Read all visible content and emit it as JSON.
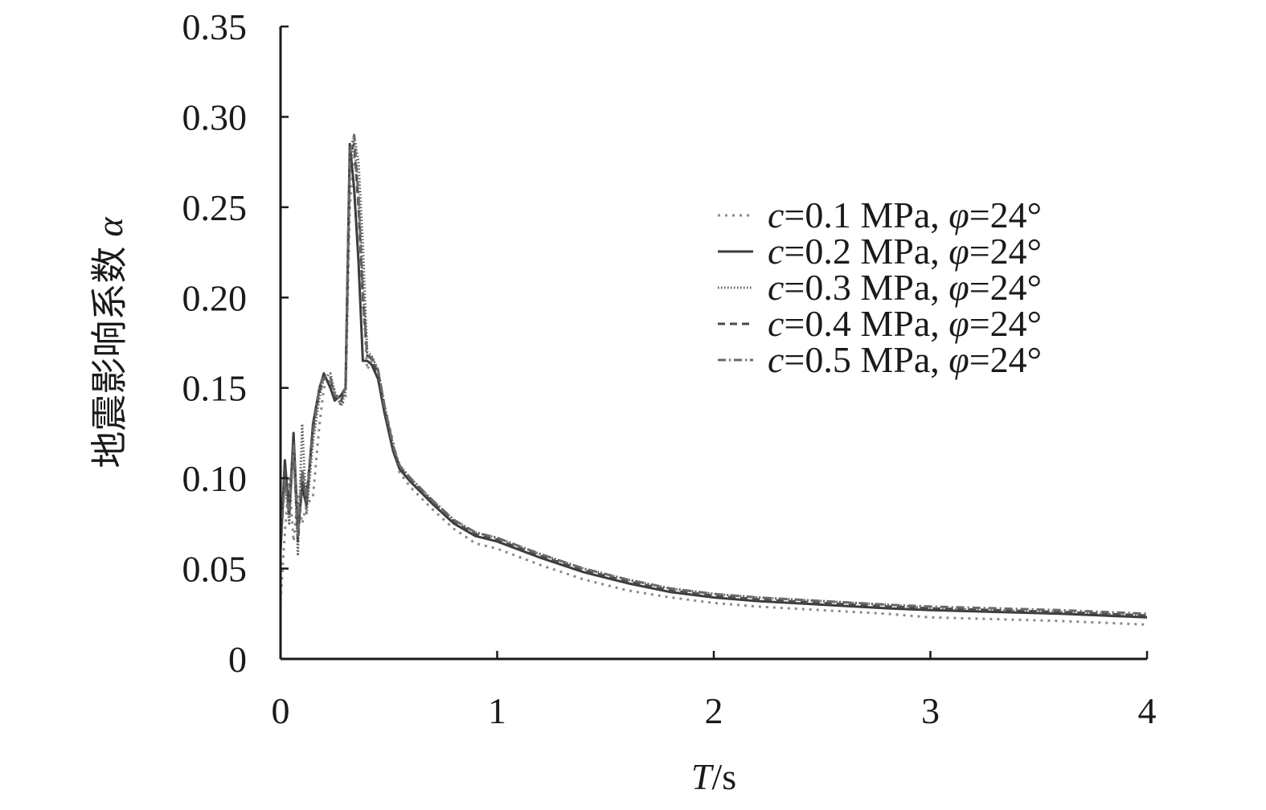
{
  "chart_data": {
    "type": "line",
    "xlabel": {
      "symbol": "T",
      "unit": "/s"
    },
    "ylabel": {
      "text": "地震影响系数",
      "symbol": "α"
    },
    "xlim": [
      0,
      4
    ],
    "ylim": [
      0,
      0.35
    ],
    "x_ticks": [
      0,
      1,
      2,
      3,
      4
    ],
    "x_tick_labels": [
      "0",
      "1",
      "2",
      "3",
      "4"
    ],
    "y_ticks": [
      0,
      0.05,
      0.1,
      0.15,
      0.2,
      0.25,
      0.3,
      0.35
    ],
    "y_tick_labels": [
      "0",
      "0.05",
      "0.10",
      "0.15",
      "0.20",
      "0.25",
      "0.30",
      "0.35"
    ],
    "grid": false,
    "legend_position": "upper-right",
    "series": [
      {
        "name": "c=0.1 MPa, φ=24°",
        "legend": {
          "var": "c",
          "value": "=0.1 MPa, ",
          "angle_var": "φ",
          "angle_value": "=24°"
        },
        "color": "#8a8a8a",
        "dash": "3,6",
        "x": [
          0,
          0.02,
          0.04,
          0.06,
          0.08,
          0.1,
          0.12,
          0.15,
          0.18,
          0.2,
          0.23,
          0.25,
          0.28,
          0.3,
          0.32,
          0.34,
          0.36,
          0.38,
          0.4,
          0.42,
          0.45,
          0.48,
          0.52,
          0.55,
          0.6,
          0.7,
          0.8,
          0.9,
          1.0,
          1.2,
          1.4,
          1.6,
          1.8,
          2.0,
          2.2,
          2.5,
          2.8,
          3.0,
          3.3,
          3.6,
          3.8,
          4.0
        ],
        "y": [
          0.032,
          0.07,
          0.1,
          0.065,
          0.09,
          0.075,
          0.085,
          0.09,
          0.13,
          0.15,
          0.155,
          0.148,
          0.14,
          0.145,
          0.25,
          0.28,
          0.26,
          0.2,
          0.16,
          0.165,
          0.16,
          0.14,
          0.12,
          0.103,
          0.095,
          0.083,
          0.072,
          0.064,
          0.061,
          0.052,
          0.044,
          0.038,
          0.034,
          0.031,
          0.029,
          0.027,
          0.025,
          0.023,
          0.022,
          0.021,
          0.02,
          0.019
        ]
      },
      {
        "name": "c=0.2 MPa, φ=24°",
        "legend": {
          "var": "c",
          "value": "=0.2 MPa, ",
          "angle_var": "φ",
          "angle_value": "=24°"
        },
        "color": "#3c3c3c",
        "dash": "",
        "x": [
          0,
          0.02,
          0.04,
          0.06,
          0.08,
          0.1,
          0.12,
          0.15,
          0.18,
          0.2,
          0.23,
          0.25,
          0.28,
          0.3,
          0.32,
          0.34,
          0.36,
          0.38,
          0.4,
          0.42,
          0.45,
          0.48,
          0.52,
          0.55,
          0.6,
          0.7,
          0.8,
          0.9,
          1.0,
          1.2,
          1.4,
          1.6,
          1.8,
          2.0,
          2.2,
          2.5,
          2.8,
          3.0,
          3.3,
          3.6,
          3.8,
          4.0
        ],
        "y": [
          0.06,
          0.11,
          0.08,
          0.125,
          0.07,
          0.095,
          0.085,
          0.13,
          0.15,
          0.158,
          0.15,
          0.143,
          0.146,
          0.15,
          0.285,
          0.26,
          0.22,
          0.165,
          0.165,
          0.163,
          0.155,
          0.136,
          0.115,
          0.105,
          0.098,
          0.086,
          0.075,
          0.068,
          0.065,
          0.056,
          0.048,
          0.042,
          0.037,
          0.034,
          0.032,
          0.03,
          0.028,
          0.027,
          0.026,
          0.025,
          0.024,
          0.023
        ]
      },
      {
        "name": "c=0.3 MPa, φ=24°",
        "legend": {
          "var": "c",
          "value": "=0.3 MPa, ",
          "angle_var": "φ",
          "angle_value": "=24°"
        },
        "color": "#5a5a5a",
        "dash": "1.5,2.5",
        "x": [
          0,
          0.02,
          0.04,
          0.06,
          0.08,
          0.1,
          0.12,
          0.15,
          0.18,
          0.2,
          0.23,
          0.25,
          0.28,
          0.3,
          0.32,
          0.34,
          0.36,
          0.38,
          0.4,
          0.42,
          0.45,
          0.48,
          0.52,
          0.55,
          0.6,
          0.7,
          0.8,
          0.9,
          1.0,
          1.2,
          1.4,
          1.6,
          1.8,
          2.0,
          2.2,
          2.5,
          2.8,
          3.0,
          3.3,
          3.6,
          3.8,
          4.0
        ],
        "y": [
          0.07,
          0.1,
          0.075,
          0.12,
          0.058,
          0.13,
          0.08,
          0.12,
          0.145,
          0.155,
          0.158,
          0.148,
          0.14,
          0.148,
          0.27,
          0.29,
          0.275,
          0.23,
          0.17,
          0.168,
          0.16,
          0.14,
          0.118,
          0.107,
          0.1,
          0.088,
          0.077,
          0.07,
          0.067,
          0.058,
          0.05,
          0.044,
          0.039,
          0.036,
          0.034,
          0.032,
          0.03,
          0.028,
          0.027,
          0.026,
          0.025,
          0.024
        ]
      },
      {
        "name": "c=0.4 MPa, φ=24°",
        "legend": {
          "var": "c",
          "value": "=0.4 MPa, ",
          "angle_var": "φ",
          "angle_value": "=24°"
        },
        "color": "#4a4a4a",
        "dash": "9,6",
        "x": [
          0,
          0.02,
          0.04,
          0.06,
          0.08,
          0.1,
          0.12,
          0.15,
          0.18,
          0.2,
          0.23,
          0.25,
          0.28,
          0.3,
          0.32,
          0.34,
          0.36,
          0.38,
          0.4,
          0.42,
          0.45,
          0.48,
          0.52,
          0.55,
          0.6,
          0.7,
          0.8,
          0.9,
          1.0,
          1.2,
          1.4,
          1.6,
          1.8,
          2.0,
          2.2,
          2.5,
          2.8,
          3.0,
          3.3,
          3.6,
          3.8,
          4.0
        ],
        "y": [
          0.065,
          0.105,
          0.085,
          0.12,
          0.065,
          0.1,
          0.09,
          0.128,
          0.148,
          0.156,
          0.155,
          0.145,
          0.143,
          0.15,
          0.28,
          0.285,
          0.25,
          0.2,
          0.168,
          0.166,
          0.158,
          0.138,
          0.117,
          0.106,
          0.099,
          0.087,
          0.076,
          0.069,
          0.066,
          0.057,
          0.049,
          0.043,
          0.038,
          0.035,
          0.033,
          0.031,
          0.029,
          0.028,
          0.027,
          0.026,
          0.025,
          0.024
        ]
      },
      {
        "name": "c=0.5 MPa, φ=24°",
        "legend": {
          "var": "c",
          "value": "=0.5 MPa, ",
          "angle_var": "φ",
          "angle_value": "=24°"
        },
        "color": "#6a6a6a",
        "dash": "10,4,2,4",
        "x": [
          0,
          0.02,
          0.04,
          0.06,
          0.08,
          0.1,
          0.12,
          0.15,
          0.18,
          0.2,
          0.23,
          0.25,
          0.28,
          0.3,
          0.32,
          0.34,
          0.36,
          0.38,
          0.4,
          0.42,
          0.45,
          0.48,
          0.52,
          0.55,
          0.6,
          0.7,
          0.8,
          0.9,
          1.0,
          1.2,
          1.4,
          1.6,
          1.8,
          2.0,
          2.2,
          2.5,
          2.8,
          3.0,
          3.3,
          3.6,
          3.8,
          4.0
        ],
        "y": [
          0.06,
          0.1,
          0.08,
          0.118,
          0.068,
          0.105,
          0.088,
          0.125,
          0.15,
          0.157,
          0.156,
          0.146,
          0.144,
          0.15,
          0.28,
          0.29,
          0.255,
          0.205,
          0.168,
          0.167,
          0.16,
          0.14,
          0.118,
          0.107,
          0.1,
          0.088,
          0.077,
          0.07,
          0.067,
          0.058,
          0.05,
          0.044,
          0.039,
          0.036,
          0.034,
          0.032,
          0.03,
          0.029,
          0.028,
          0.027,
          0.026,
          0.025
        ]
      }
    ]
  }
}
